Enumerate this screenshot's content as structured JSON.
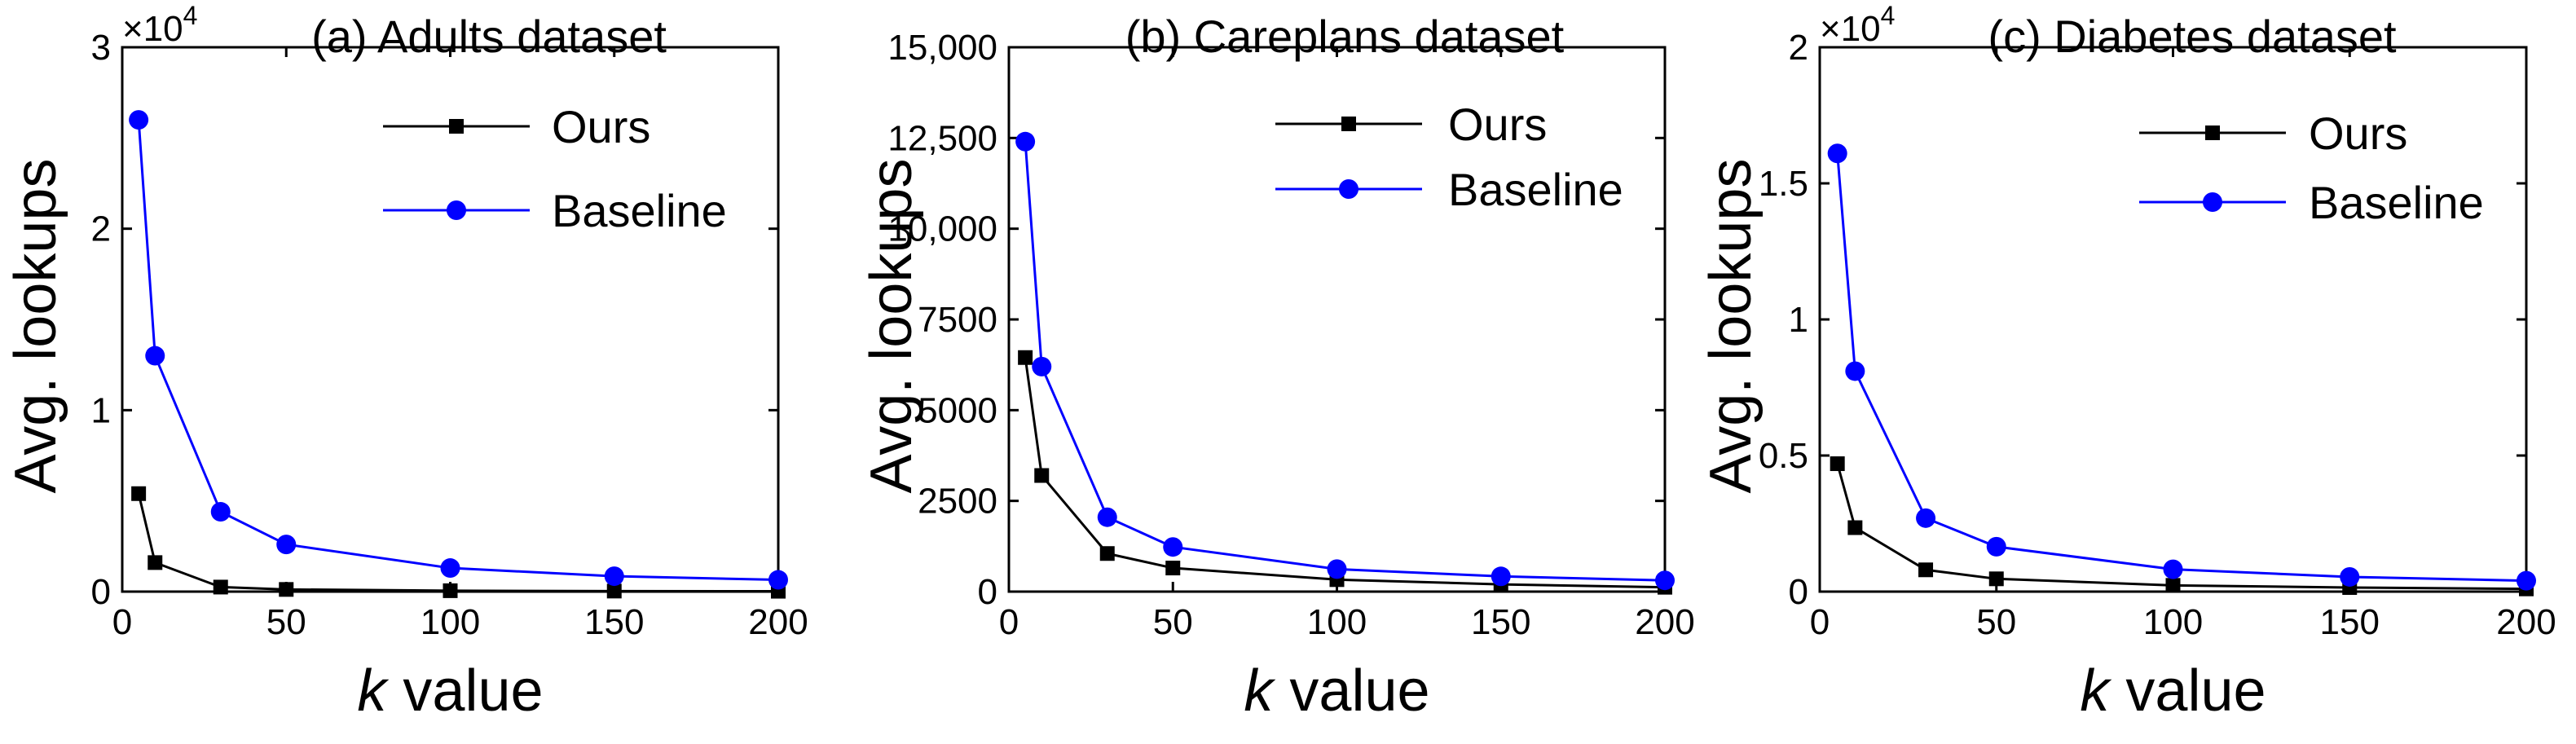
{
  "chart_data": [
    {
      "type": "line",
      "title": "(a) Adults dataset",
      "xlabel_var": "k",
      "xlabel_rest": " value",
      "ylabel": "Avg. lookups",
      "xlim": [
        0,
        200
      ],
      "ylim": [
        0,
        30000
      ],
      "xticks": [
        0,
        50,
        100,
        150,
        200
      ],
      "xtick_labels": [
        "0",
        "50",
        "100",
        "150",
        "200"
      ],
      "yticks": [
        0,
        10000,
        20000,
        30000
      ],
      "ytick_labels": [
        "0",
        "1",
        "2",
        "3"
      ],
      "exponent_label": "×10",
      "exponent_power": "4",
      "legend_position": "top-right",
      "series": [
        {
          "name": "Ours",
          "color": "#000000",
          "marker": "square",
          "x": [
            5,
            10,
            30,
            50,
            100,
            150,
            200
          ],
          "y": [
            5400,
            1600,
            250,
            120,
            50,
            30,
            20
          ]
        },
        {
          "name": "Baseline",
          "color": "#0000ff",
          "marker": "circle",
          "x": [
            5,
            10,
            30,
            50,
            100,
            150,
            200
          ],
          "y": [
            26000,
            13000,
            4400,
            2600,
            1300,
            850,
            650
          ]
        }
      ]
    },
    {
      "type": "line",
      "title": "(b) Careplans dataset",
      "xlabel_var": "k",
      "xlabel_rest": " value",
      "ylabel": "Avg. lookups",
      "xlim": [
        0,
        200
      ],
      "ylim": [
        0,
        15000
      ],
      "xticks": [
        0,
        50,
        100,
        150,
        200
      ],
      "xtick_labels": [
        "0",
        "50",
        "100",
        "150",
        "200"
      ],
      "yticks": [
        0,
        2500,
        5000,
        7500,
        10000,
        12500,
        15000
      ],
      "ytick_labels": [
        "0",
        "2500",
        "5000",
        "7500",
        "10,000",
        "12,500",
        "15,000"
      ],
      "exponent_label": "",
      "exponent_power": "",
      "legend_position": "top-right",
      "series": [
        {
          "name": "Ours",
          "color": "#000000",
          "marker": "square",
          "x": [
            5,
            10,
            30,
            50,
            100,
            150,
            200
          ],
          "y": [
            6450,
            3200,
            1050,
            650,
            330,
            200,
            120
          ]
        },
        {
          "name": "Baseline",
          "color": "#0000ff",
          "marker": "circle",
          "x": [
            5,
            10,
            30,
            50,
            100,
            150,
            200
          ],
          "y": [
            12400,
            6200,
            2050,
            1230,
            620,
            420,
            310
          ]
        }
      ]
    },
    {
      "type": "line",
      "title": "(c) Diabetes dataset",
      "xlabel_var": "k",
      "xlabel_rest": " value",
      "ylabel": "Avg. lookups",
      "xlim": [
        0,
        200
      ],
      "ylim": [
        0,
        20000
      ],
      "xticks": [
        0,
        50,
        100,
        150,
        200
      ],
      "xtick_labels": [
        "0",
        "50",
        "100",
        "150",
        "200"
      ],
      "yticks": [
        0,
        5000,
        10000,
        15000,
        20000
      ],
      "ytick_labels": [
        "0",
        "0.5",
        "1",
        "1.5",
        "2"
      ],
      "exponent_label": "×10",
      "exponent_power": "4",
      "legend_position": "top-right",
      "series": [
        {
          "name": "Ours",
          "color": "#000000",
          "marker": "square",
          "x": [
            5,
            10,
            30,
            50,
            100,
            150,
            200
          ],
          "y": [
            4700,
            2350,
            800,
            470,
            230,
            150,
            100
          ]
        },
        {
          "name": "Baseline",
          "color": "#0000ff",
          "marker": "circle",
          "x": [
            5,
            10,
            30,
            50,
            100,
            150,
            200
          ],
          "y": [
            16100,
            8100,
            2700,
            1650,
            820,
            540,
            400
          ]
        }
      ]
    }
  ]
}
